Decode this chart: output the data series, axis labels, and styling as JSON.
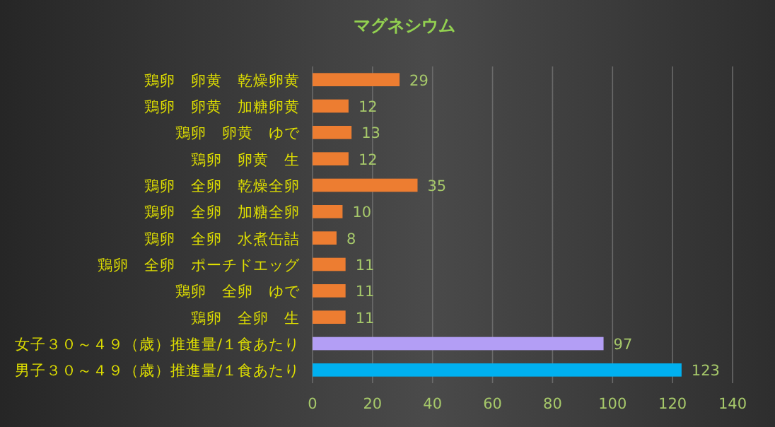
{
  "chart_data": {
    "type": "bar",
    "orientation": "horizontal",
    "title": "マグネシウム",
    "categories": [
      "鶏卵　卵黄　乾燥卵黄",
      "鶏卵　卵黄　加糖卵黄",
      "鶏卵　卵黄　ゆで",
      "鶏卵　卵黄　生",
      "鶏卵　全卵　乾燥全卵",
      "鶏卵　全卵　加糖全卵",
      "鶏卵　全卵　水煮缶詰",
      "鶏卵　全卵　ポーチドエッグ",
      "鶏卵　全卵　ゆで",
      "鶏卵　全卵　生",
      "女子３０～４９（歳）推進量/１食あたり",
      "男子３０～４９（歳）推進量/１食あたり"
    ],
    "values": [
      29,
      12,
      13,
      12,
      35,
      10,
      8,
      11,
      11,
      11,
      97,
      123
    ],
    "colors": [
      "#ed7d31",
      "#ed7d31",
      "#ed7d31",
      "#ed7d31",
      "#ed7d31",
      "#ed7d31",
      "#ed7d31",
      "#ed7d31",
      "#ed7d31",
      "#ed7d31",
      "#b39ef5",
      "#00b0f0"
    ],
    "data_labels": true,
    "xlim": [
      0,
      140
    ],
    "xticks": [
      0,
      20,
      40,
      60,
      80,
      100,
      120,
      140
    ],
    "grid": "x"
  }
}
